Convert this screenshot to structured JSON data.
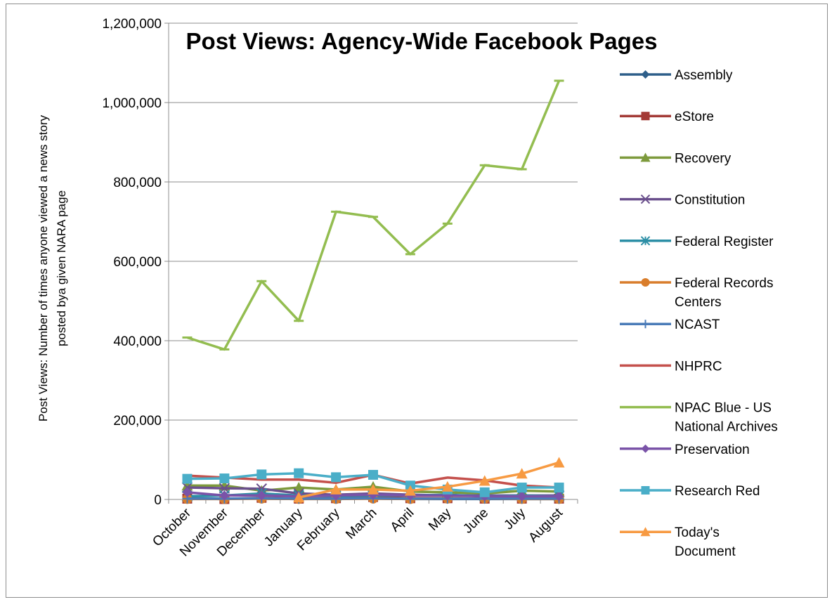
{
  "chart_data": {
    "type": "line",
    "title": "Post Views: Agency-Wide Facebook Pages",
    "ylabel_lines": [
      "Post Views: Number of times anyone viewed a news story",
      "posted bya given NARA page"
    ],
    "ylim": [
      0,
      1200000
    ],
    "y_ticks": [
      0,
      200000,
      400000,
      600000,
      800000,
      1000000,
      1200000
    ],
    "y_tick_labels": [
      "0",
      "200,000",
      "400,000",
      "600,000",
      "800,000",
      "1,000,000",
      "1,200,000"
    ],
    "categories": [
      "October",
      "November",
      "December",
      "January",
      "February",
      "March",
      "April",
      "May",
      "June",
      "July",
      "August"
    ],
    "grid": "horizontal",
    "legend_position": "right",
    "series": [
      {
        "name": "Assembly",
        "color": "#2e5f8a",
        "marker": "diamond",
        "values": [
          3000,
          2000,
          2000,
          1000,
          2000,
          2000,
          1000,
          1000,
          1000,
          1000,
          1000
        ]
      },
      {
        "name": "eStore",
        "color": "#a33a36",
        "marker": "square",
        "values": [
          2000,
          1000,
          4000,
          2000,
          3000,
          6000,
          3000,
          3000,
          2000,
          2000,
          2000
        ]
      },
      {
        "name": "Recovery",
        "color": "#7d9a3c",
        "marker": "triangle",
        "values": [
          35000,
          35000,
          22000,
          30000,
          25000,
          32000,
          20000,
          18000,
          15000,
          22000,
          20000
        ]
      },
      {
        "name": "Constitution",
        "color": "#6a4f8c",
        "marker": "x",
        "values": [
          30000,
          28000,
          27000,
          15000,
          12000,
          15000,
          12000,
          10000,
          10000,
          10000,
          10000
        ]
      },
      {
        "name": "Federal Register",
        "color": "#2c8fa6",
        "marker": "asterisk",
        "values": [
          8000,
          10000,
          15000,
          10000,
          8000,
          10000,
          10000,
          12000,
          8000,
          10000,
          8000
        ]
      },
      {
        "name": "Federal Records Centers",
        "label_lines": [
          "Federal Records",
          "Centers"
        ],
        "color": "#d97d2b",
        "marker": "circle",
        "values": [
          1000,
          1000,
          2000,
          1000,
          1000,
          2000,
          1000,
          2000,
          2000,
          1000,
          1000
        ]
      },
      {
        "name": "NCAST",
        "color": "#4a7bb8",
        "marker": "plus",
        "values": [
          2000,
          2000,
          3000,
          2000,
          2000,
          3000,
          2000,
          2000,
          2000,
          2000,
          2000
        ]
      },
      {
        "name": "NHPRC",
        "color": "#c4504c",
        "marker": "none",
        "values": [
          60000,
          55000,
          50000,
          50000,
          42000,
          62000,
          40000,
          55000,
          48000,
          35000,
          30000
        ]
      },
      {
        "name": "NPAC Blue - US National Archives",
        "label_lines": [
          "NPAC Blue - US",
          "National Archives"
        ],
        "color": "#93bd50",
        "marker": "dash",
        "values": [
          408000,
          378000,
          550000,
          450000,
          725000,
          712000,
          618000,
          695000,
          842000,
          832000,
          1055000
        ]
      },
      {
        "name": "Preservation",
        "color": "#7a53a8",
        "marker": "diamond",
        "values": [
          18000,
          10000,
          10000,
          8000,
          10000,
          12000,
          10000,
          10000,
          8000,
          8000,
          8000
        ]
      },
      {
        "name": "Research Red",
        "color": "#4aaec8",
        "marker": "square",
        "values": [
          52000,
          53000,
          63000,
          66000,
          56000,
          62000,
          35000,
          25000,
          18000,
          30000,
          30000
        ]
      },
      {
        "name": "Today's Document",
        "label_lines": [
          "Today's",
          "Document"
        ],
        "color": "#f79a42",
        "marker": "triangle",
        "values": [
          null,
          null,
          null,
          5000,
          25000,
          25000,
          22000,
          32000,
          47000,
          65000,
          93000
        ]
      }
    ]
  }
}
